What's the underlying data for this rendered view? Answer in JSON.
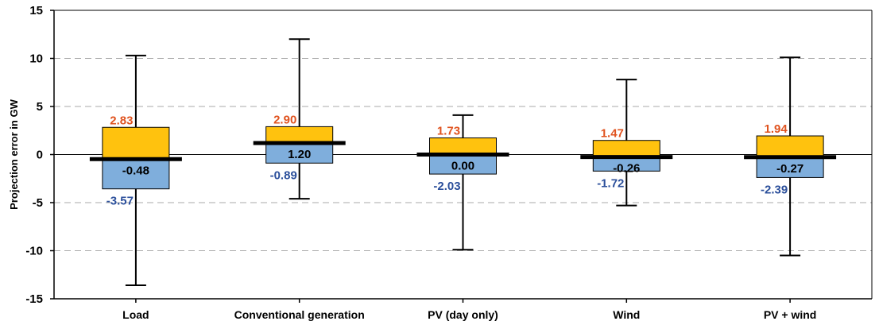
{
  "chart_data": {
    "type": "box",
    "title": "",
    "ylabel": "Projection error in GW",
    "xlabel": "",
    "ylim": [
      -15,
      15
    ],
    "yticks": [
      -15,
      -10,
      -5,
      0,
      5,
      10,
      15
    ],
    "ytick_labels": [
      "-15",
      "-10",
      "-5",
      "0",
      "5",
      "10",
      "15"
    ],
    "grid": "horizontal-dashed",
    "legend": "none",
    "colors": {
      "upper_box": "#FFC20E",
      "lower_box": "#7FAEDC",
      "upper_label": "#E0531F",
      "lower_label": "#2B4F9B",
      "median_label": "#000000",
      "grid": "#AAAAAA"
    },
    "categories": [
      "Load",
      "Conventional generation",
      "PV (day only)",
      "Wind",
      "PV + wind"
    ],
    "boxes": [
      {
        "category": "Load",
        "max": 10.3,
        "upper": 2.83,
        "median": -0.48,
        "lower": -3.57,
        "min": -13.6,
        "upper_label": "2.83",
        "median_label": "-0.48",
        "lower_label": "-3.57"
      },
      {
        "category": "Conventional generation",
        "max": 12.0,
        "upper": 2.9,
        "median": 1.2,
        "lower": -0.89,
        "min": -4.6,
        "upper_label": "2.90",
        "median_label": "1.20",
        "lower_label": "-0.89"
      },
      {
        "category": "PV (day only)",
        "max": 4.1,
        "upper": 1.73,
        "median": 0.0,
        "lower": -2.03,
        "min": -9.9,
        "upper_label": "1.73",
        "median_label": "0.00",
        "lower_label": "-2.03"
      },
      {
        "category": "Wind",
        "max": 7.8,
        "upper": 1.47,
        "median": -0.26,
        "lower": -1.72,
        "min": -5.3,
        "upper_label": "1.47",
        "median_label": "-0.26",
        "lower_label": "-1.72"
      },
      {
        "category": "PV + wind",
        "max": 10.1,
        "upper": 1.94,
        "median": -0.27,
        "lower": -2.39,
        "min": -10.5,
        "upper_label": "1.94",
        "median_label": "-0.27",
        "lower_label": "-2.39"
      }
    ]
  }
}
